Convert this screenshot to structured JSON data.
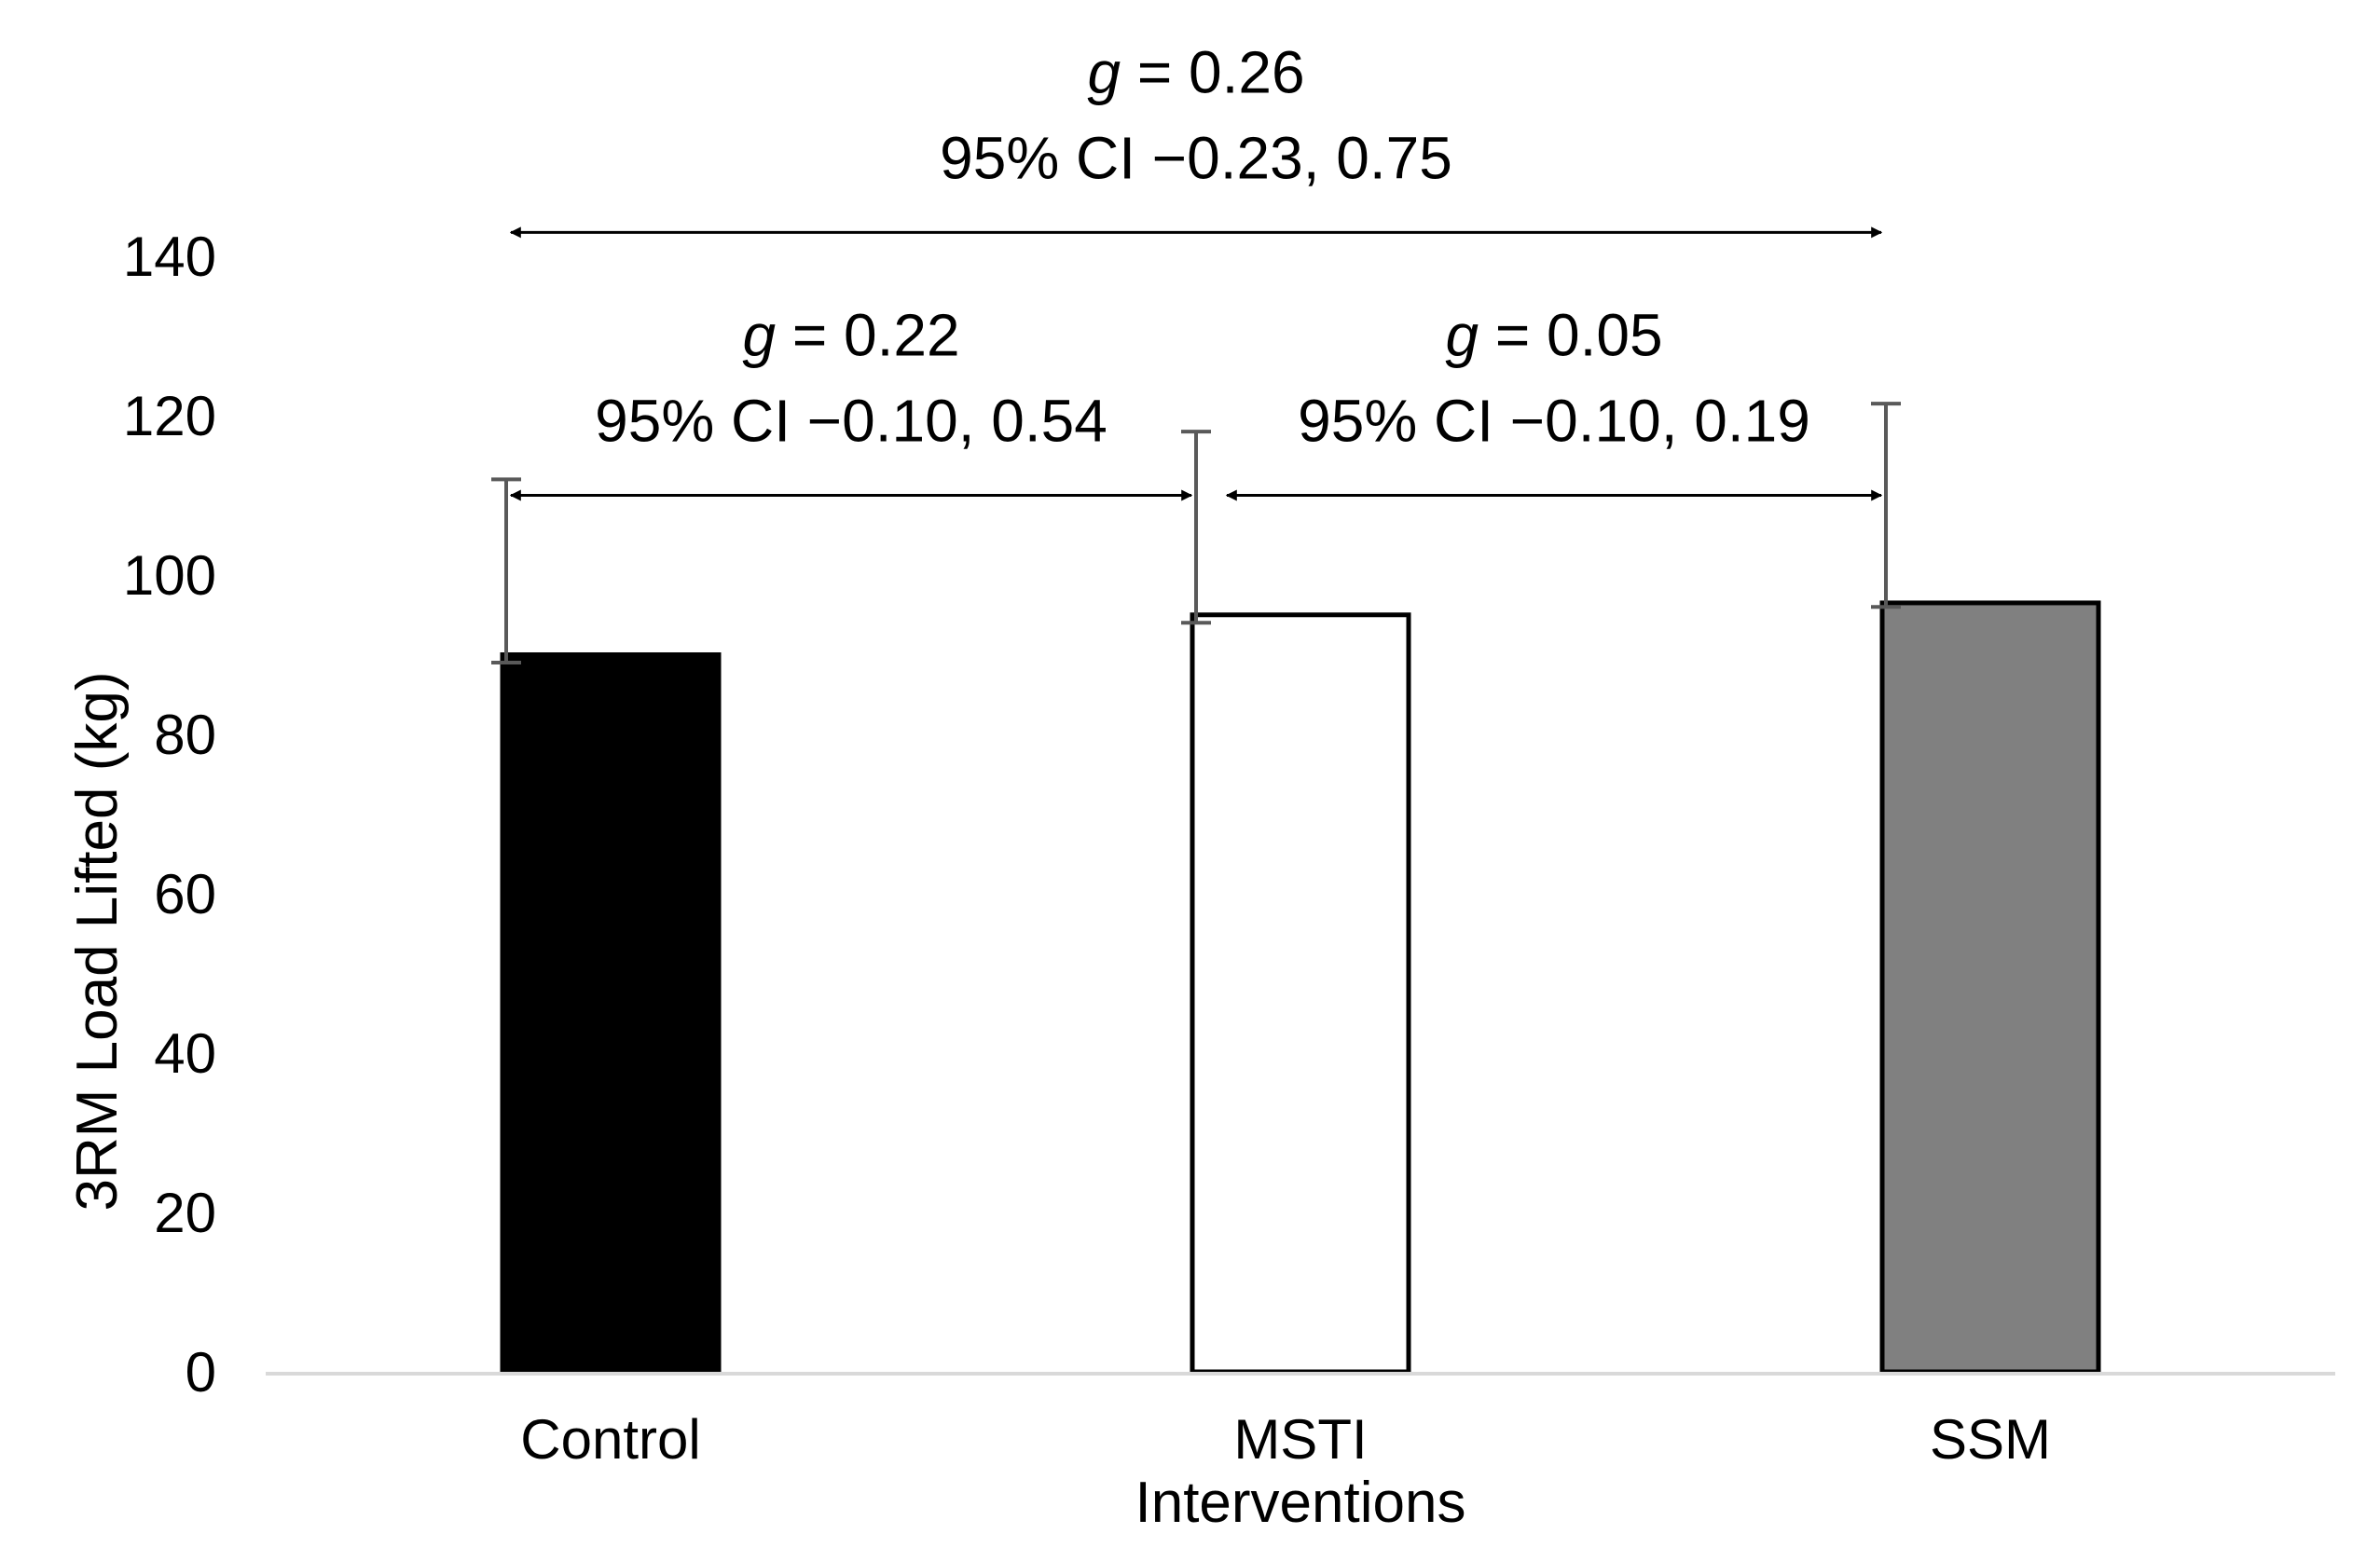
{
  "chart_data": {
    "type": "bar",
    "categories": [
      "Control",
      "MSTI",
      "SSM"
    ],
    "values": [
      90,
      95,
      96.5
    ],
    "error_upper": [
      112,
      118,
      121.5
    ],
    "error_lower": [
      89,
      94,
      96
    ],
    "bar_colors": [
      "#000000",
      "#ffffff",
      "#808080"
    ],
    "bar_edge_color": "#000000",
    "errorbar_color": "#595959",
    "axis_color": "#d9d9d9",
    "xlabel": "Interventions",
    "ylabel": "3RM Load Lifted (kg)",
    "ylim": [
      0,
      140
    ],
    "yticks": [
      0,
      20,
      40,
      60,
      80,
      100,
      120,
      140
    ],
    "grid": false,
    "annotations": [
      {
        "from": "Control",
        "to": "SSM",
        "arrow_at": 143,
        "g_label": "g",
        "g_rest": " = 0.26",
        "ci": "95% CI −0.23, 0.75"
      },
      {
        "from": "Control",
        "to": "MSTI",
        "arrow_at": 110,
        "g_label": "g",
        "g_rest": " = 0.22",
        "ci": "95% CI −0.10, 0.54"
      },
      {
        "from": "MSTI",
        "to": "SSM",
        "arrow_at": 110,
        "g_label": "g",
        "g_rest": " = 0.05",
        "ci": "95% CI −0.10, 0.19"
      }
    ]
  }
}
